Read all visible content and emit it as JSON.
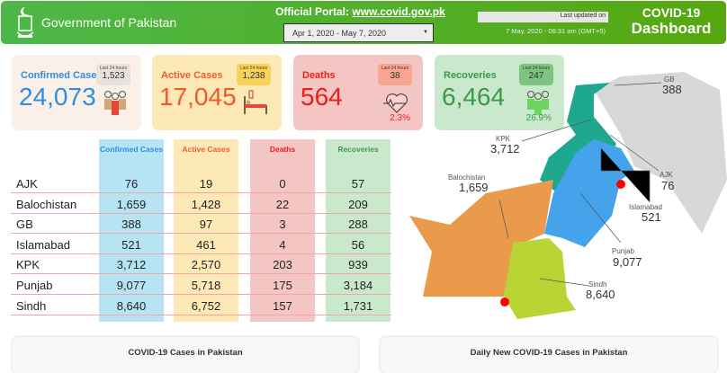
{
  "header": {
    "org": "Government of Pakistan",
    "portal_label": "Official Portal:",
    "portal_link": "www.covid.gov.pk",
    "date_range": "Apr 1, 2020 - May 7, 2020",
    "last_updated_label": "Last updated on",
    "last_updated": "7 May, 2020 - 06:31 am (GMT+5)",
    "title1": "COVID-19",
    "title2": "Dashboard"
  },
  "cards": [
    {
      "label": "Confirmed Cases",
      "value": "24,073",
      "last24_label": "Last 24 hours",
      "last24": "1,523",
      "color": "#2f8de4",
      "bg": "#faf0e8"
    },
    {
      "label": "Active Cases",
      "value": "17,045",
      "last24_label": "Last 24 hours",
      "last24": "1,238",
      "color": "#f2592a",
      "bg": "#fde9b6"
    },
    {
      "label": "Deaths",
      "value": "564",
      "last24_label": "Last 24 hours",
      "last24": "38",
      "pct": "2.3%",
      "color": "#f01c1c",
      "bg": "#f4c6c3"
    },
    {
      "label": "Recoveries",
      "value": "6,464",
      "last24_label": "Last 24 hours",
      "last24": "247",
      "pct": "26.9%",
      "color": "#3b9a4a",
      "bg": "#c9e8cc"
    }
  ],
  "table": {
    "headers": [
      "Confirmed Cases",
      "Active Cases",
      "Deaths",
      "Recoveries"
    ],
    "rows": [
      [
        "AJK",
        "76",
        "19",
        "0",
        "57"
      ],
      [
        "Balochistan",
        "1,659",
        "1,428",
        "22",
        "209"
      ],
      [
        "GB",
        "388",
        "97",
        "3",
        "288"
      ],
      [
        "Islamabad",
        "521",
        "461",
        "4",
        "56"
      ],
      [
        "KPK",
        "3,712",
        "2,570",
        "203",
        "939"
      ],
      [
        "Punjab",
        "9,077",
        "5,718",
        "175",
        "3,184"
      ],
      [
        "Sindh",
        "8,640",
        "6,752",
        "157",
        "1,731"
      ]
    ]
  },
  "map": {
    "labels": [
      {
        "name": "GB",
        "value": "388"
      },
      {
        "name": "KPK",
        "value": "3,712"
      },
      {
        "name": "Balochistan",
        "value": "1,659"
      },
      {
        "name": "AJK",
        "value": "76"
      },
      {
        "name": "Islamabad",
        "value": "521"
      },
      {
        "name": "Punjab",
        "value": "9,077"
      },
      {
        "name": "Sindh",
        "value": "8,640"
      }
    ]
  },
  "panels": {
    "left": "COVID-19 Cases in Pakistan",
    "right": "Daily New COVID-19 Cases in Pakistan"
  }
}
